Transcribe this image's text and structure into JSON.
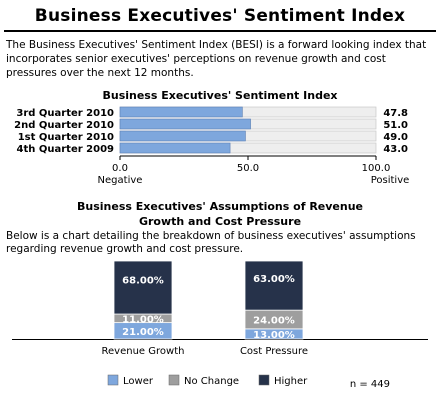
{
  "title": "Business Executives' Sentiment Index",
  "intro": "The Business Executives' Sentiment Index (BESI) is a forward looking index that incorporates senior executives' perceptions on revenue growth and cost pressures over the next 12 months.",
  "colors": {
    "index_bar": "#7ea7dd",
    "lower": "#7ea7dd",
    "no_change": "#9e9e9e",
    "higher": "#26324a"
  },
  "chart_data": [
    {
      "type": "bar",
      "orientation": "horizontal",
      "title": "Business Executives' Sentiment Index",
      "categories": [
        "3rd Quarter 2010",
        "2nd Quarter 2010",
        "1st Quarter 2010",
        "4th Quarter 2009"
      ],
      "values": [
        47.8,
        51.0,
        49.0,
        43.0
      ],
      "value_labels": [
        "47.8",
        "51.0",
        "49.0",
        "43.0"
      ],
      "xlim": [
        0,
        100
      ],
      "ticks": [
        "0.0",
        "50.0",
        "100.0"
      ],
      "tick_values": [
        0,
        50,
        100
      ],
      "axis_end_labels": {
        "left": "Negative",
        "right": "Positive"
      }
    },
    {
      "type": "bar",
      "stacked": true,
      "title": "Business Executives' Assumptions of Revenue Growth and Cost Pressure",
      "description": "Below is a chart detailing the breakdown of business executives' assumptions regarding revenue growth and cost pressure.",
      "categories": [
        "Revenue Growth",
        "Cost Pressure"
      ],
      "series": [
        {
          "name": "Lower",
          "values": [
            21,
            13
          ],
          "labels": [
            "21.00%",
            "13.00%"
          ]
        },
        {
          "name": "No Change",
          "values": [
            11,
            24
          ],
          "labels": [
            "11.00%",
            "24.00%"
          ]
        },
        {
          "name": "Higher",
          "values": [
            68,
            63
          ],
          "labels": [
            "68.00%",
            "63.00%"
          ]
        }
      ],
      "ylim": [
        0,
        100
      ],
      "legend": "bottom",
      "note": "n = 449"
    }
  ]
}
